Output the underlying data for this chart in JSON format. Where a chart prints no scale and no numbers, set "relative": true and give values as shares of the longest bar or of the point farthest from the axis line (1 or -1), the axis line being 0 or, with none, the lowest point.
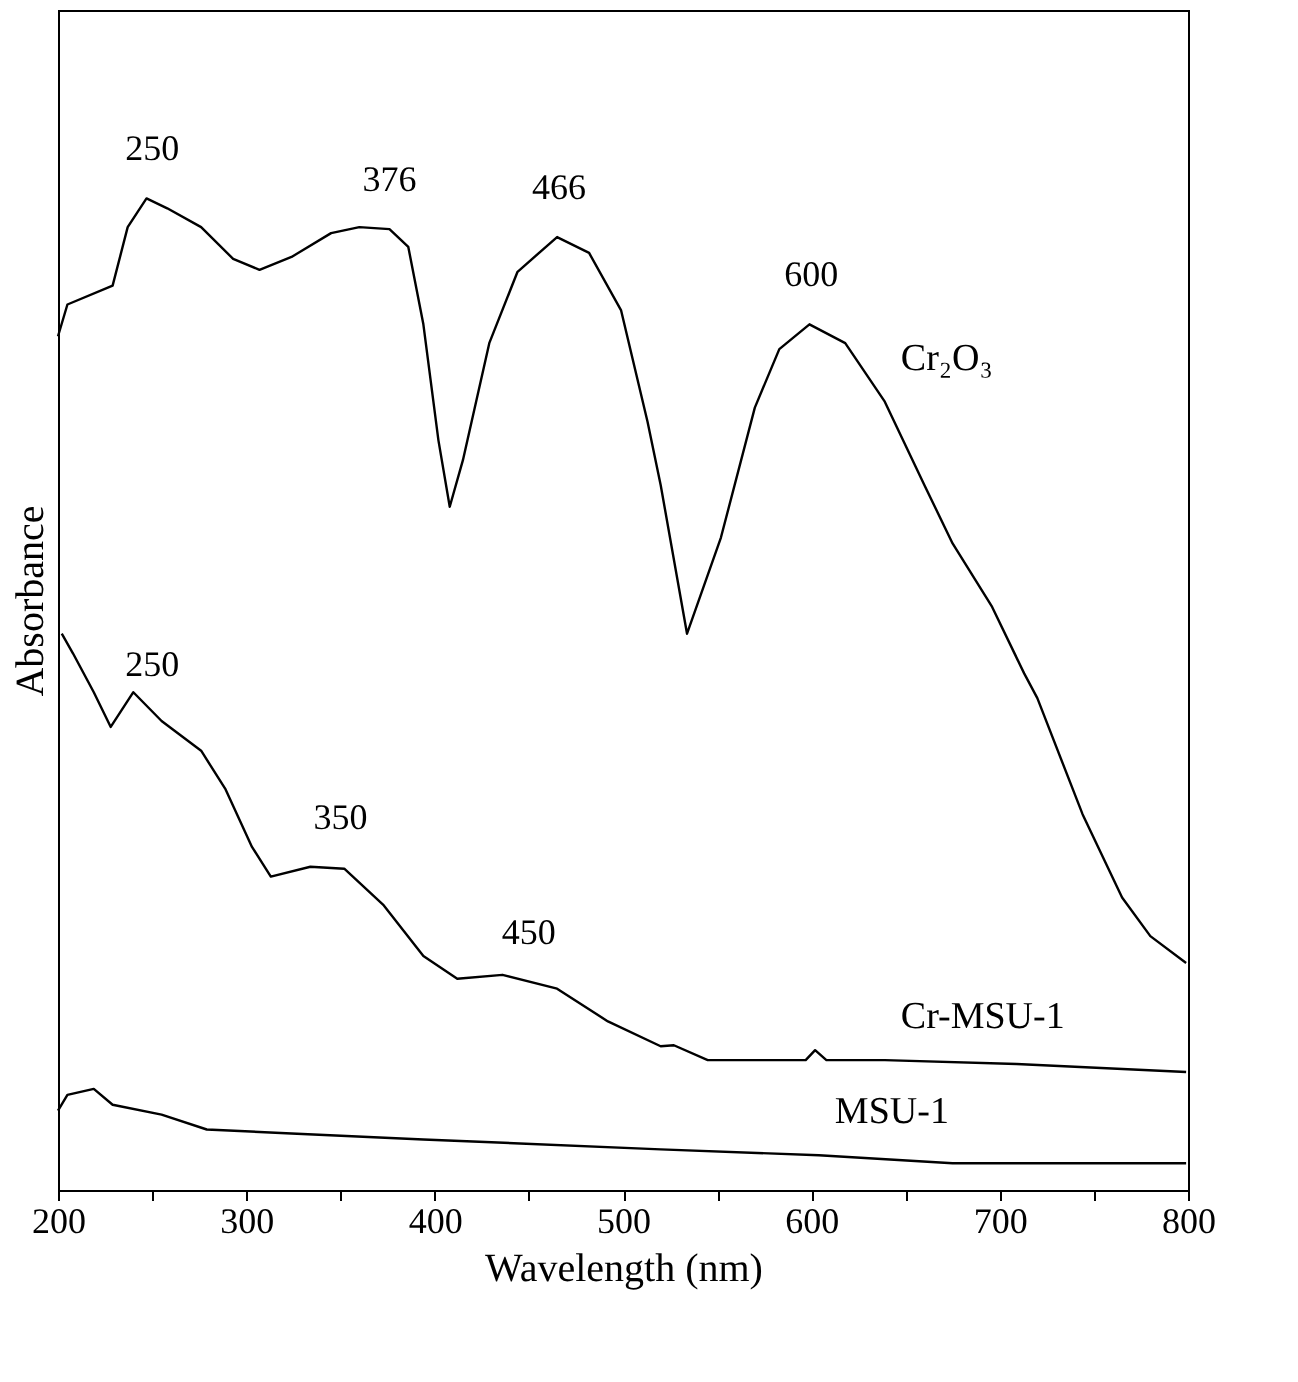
{
  "chart_data": {
    "type": "line",
    "xlabel": "Wavelength (nm)",
    "ylabel": "Absorbance",
    "relative": true,
    "xlim": [
      200,
      800
    ],
    "xticks": [
      200,
      {
        "value": 250,
        "label": null
      },
      300,
      {
        "value": 350,
        "label": null
      },
      400,
      {
        "value": 450,
        "label": null
      },
      500,
      {
        "value": 550,
        "label": null
      },
      600,
      {
        "value": 650,
        "label": null
      },
      700,
      {
        "value": 750,
        "label": null
      },
      800
    ],
    "series": [
      {
        "name": "Cr₂O₃",
        "color": "#000000",
        "x": [
          200,
          205,
          229,
          237,
          247,
          258,
          276,
          293,
          307,
          324,
          345,
          360,
          376,
          386,
          394,
          402,
          408,
          415,
          429,
          444,
          465,
          482,
          499,
          513,
          520,
          534,
          552,
          570,
          583,
          599,
          618,
          639,
          660,
          675,
          696,
          713,
          720,
          744,
          765,
          780,
          799
        ],
        "values": [
          0.861,
          0.893,
          0.912,
          0.971,
          1.0,
          0.99,
          0.971,
          0.939,
          0.928,
          0.941,
          0.965,
          0.971,
          0.969,
          0.951,
          0.873,
          0.756,
          0.689,
          0.736,
          0.854,
          0.926,
          0.961,
          0.945,
          0.887,
          0.775,
          0.711,
          0.561,
          0.658,
          0.789,
          0.848,
          0.873,
          0.854,
          0.795,
          0.711,
          0.652,
          0.588,
          0.521,
          0.496,
          0.379,
          0.295,
          0.256,
          0.229
        ]
      },
      {
        "name": "Cr-MSU-1",
        "color": "#000000",
        "x": [
          202,
          208,
          219,
          228,
          240,
          255,
          276,
          289,
          303,
          313,
          334,
          352,
          373,
          394,
          412,
          436,
          465,
          492,
          520,
          527,
          545,
          597,
          602,
          608,
          639,
          709,
          799
        ],
        "values": [
          0.561,
          0.541,
          0.502,
          0.467,
          0.502,
          0.473,
          0.443,
          0.404,
          0.346,
          0.316,
          0.326,
          0.324,
          0.287,
          0.236,
          0.213,
          0.217,
          0.203,
          0.17,
          0.145,
          0.146,
          0.131,
          0.131,
          0.141,
          0.131,
          0.131,
          0.127,
          0.119
        ]
      },
      {
        "name": "MSU-1",
        "color": "#000000",
        "x": [
          200,
          205,
          219,
          229,
          255,
          279,
          324,
          394,
          520,
          604,
          675,
          799
        ],
        "values": [
          0.08,
          0.096,
          0.102,
          0.086,
          0.076,
          0.061,
          0.057,
          0.051,
          0.041,
          0.035,
          0.027,
          0.027
        ]
      }
    ],
    "annotations": [
      {
        "text": "250",
        "x": 250,
        "y": 1.0
      },
      {
        "text": "376",
        "x": 376,
        "y": 0.969
      },
      {
        "text": "466",
        "x": 466,
        "y": 0.961
      },
      {
        "text": "600",
        "x": 600,
        "y": 0.873
      },
      {
        "text": "250",
        "x": 250,
        "y": 0.48
      },
      {
        "text": "350",
        "x": 350,
        "y": 0.326
      },
      {
        "text": "450",
        "x": 450,
        "y": 0.21
      }
    ]
  }
}
